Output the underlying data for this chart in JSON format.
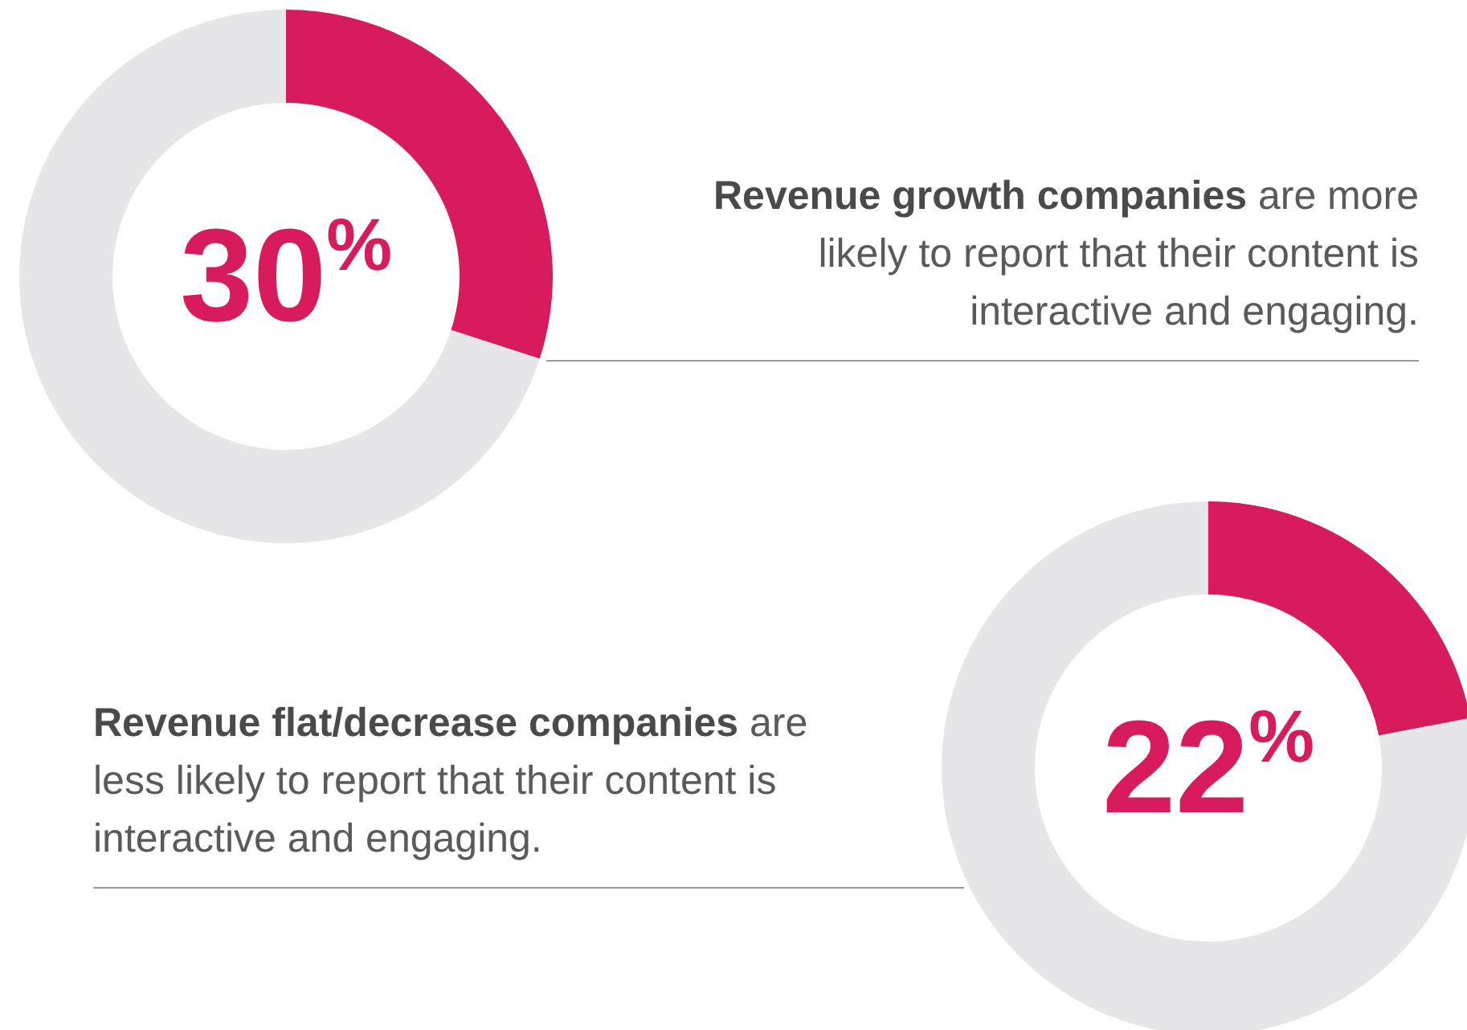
{
  "chart_data": [
    {
      "type": "donut",
      "categories": [
        null,
        null
      ],
      "values": [
        30,
        70
      ],
      "colors": [
        "#d81b5c",
        "#e6e6e8"
      ],
      "value_labels": [
        "30$^{%}$",
        null
      ],
      "annotations": [
        "Revenue growth companies",
        "are more likely to report that their content is interactive and engaging."
      ]
    },
    {
      "type": "donut",
      "categories": [
        null,
        null
      ],
      "values": [
        22,
        78
      ],
      "colors": [
        "#d81b5c",
        "#e6e6e8"
      ],
      "value_labels": [
        "22$^{%}$",
        null
      ],
      "annotations": [
        "Revenue flat/decrease companies",
        "are less likely to report that their content is interactive and engaging."
      ]
    }
  ]
}
